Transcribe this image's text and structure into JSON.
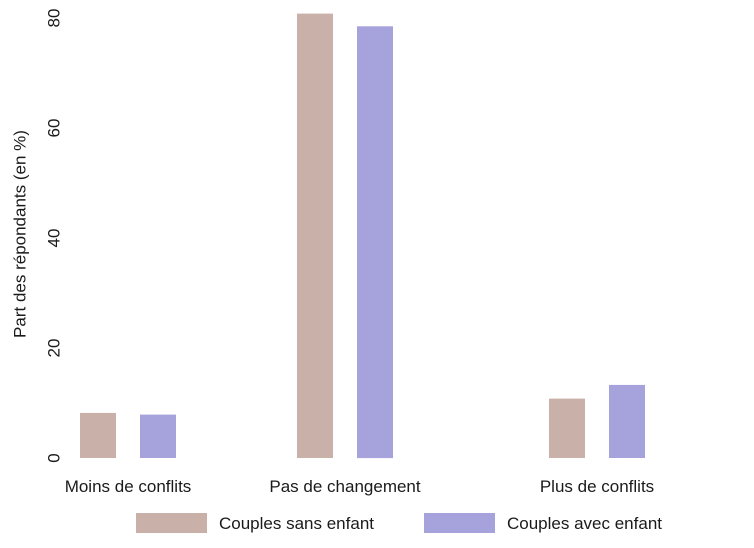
{
  "chart_data": {
    "type": "bar",
    "title": "",
    "xlabel": "",
    "ylabel": "Part des répondants (en %)",
    "categories": [
      "Moins de conflits",
      "Pas de changement",
      "Plus de conflits"
    ],
    "series": [
      {
        "name": "Couples sans enfant",
        "color": "#c9b0a9",
        "values": [
          8.2,
          80.8,
          10.8
        ]
      },
      {
        "name": "Couples avec enfant",
        "color": "#a6a3dc",
        "values": [
          7.9,
          78.5,
          13.3
        ]
      }
    ],
    "yticks": [
      "0",
      "20",
      "40",
      "60",
      "80"
    ],
    "ylim": [
      0,
      80
    ],
    "grid": false,
    "legend_position": "bottom"
  }
}
